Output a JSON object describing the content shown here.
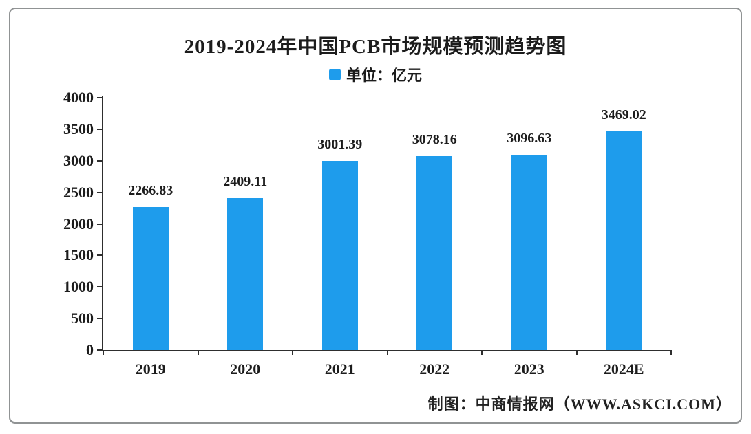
{
  "chart_data": {
    "type": "bar",
    "title": "2019-2024年中国PCB市场规模预测趋势图",
    "legend": {
      "label": "单位：亿元",
      "swatch_color": "#1e9cec",
      "position": "top-center"
    },
    "categories": [
      "2019",
      "2020",
      "2021",
      "2022",
      "2023",
      "2024E"
    ],
    "values": [
      2266.83,
      2409.11,
      3001.39,
      3078.16,
      3096.63,
      3469.02
    ],
    "value_labels": [
      "2266.83",
      "2409.11",
      "3001.39",
      "3078.16",
      "3096.63",
      "3469.02"
    ],
    "bar_color": "#1e9cec",
    "ylim": [
      0,
      4000
    ],
    "yticks": [
      0,
      500,
      1000,
      1500,
      2000,
      2500,
      3000,
      3500,
      4000
    ],
    "grid": false,
    "xlabel": "",
    "ylabel": ""
  },
  "footer": {
    "credit": "制图：中商情报网（WWW.ASKCI.COM）"
  },
  "frame": {
    "border_color": "#909394",
    "background": "#ffffff"
  }
}
